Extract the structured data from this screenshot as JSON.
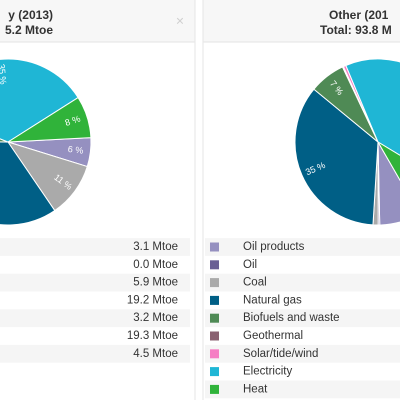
{
  "chart_data": [
    {
      "type": "pie",
      "title": "y (2013)",
      "subtitle": "5.2 Mtoe",
      "values": [
        3.1,
        0.0,
        5.9,
        19.2,
        3.2,
        19.3,
        4.5
      ],
      "value_labels": [
        "3.1 Mtoe",
        "0.0 Mtoe",
        "5.9 Mtoe",
        "19.2 Mtoe",
        "3.2 Mtoe",
        "19.3 Mtoe",
        "4.5 Mtoe"
      ],
      "percent_labels": [
        "6 %",
        null,
        "11 %",
        null,
        null,
        "35 %",
        "8 %"
      ],
      "colors": [
        "#9590c0",
        "#6a5f94",
        "#aaaaaa",
        "#005f86",
        "#4f8a55",
        "#1fb6d5",
        "#30b33a"
      ]
    },
    {
      "type": "pie",
      "title": "Other (201",
      "subtitle": "Total: 93.8 M",
      "categories": [
        "Oil products",
        "Oil",
        "Coal",
        "Natural gas",
        "Biofuels and waste",
        "Geothermal",
        "Solar/tide/wind",
        "Electricity",
        "Heat"
      ],
      "values": [
        8,
        0.3,
        1,
        35,
        7,
        0.2,
        0.5,
        40,
        8
      ],
      "percent_labels": [
        null,
        null,
        null,
        "35 %",
        "7 %",
        null,
        null,
        null,
        null
      ],
      "colors": [
        "#9590c0",
        "#6a5f94",
        "#aaaaaa",
        "#005f86",
        "#4f8a55",
        "#8a6171",
        "#f57fc4",
        "#1fb6d5",
        "#30b33a"
      ]
    }
  ]
}
